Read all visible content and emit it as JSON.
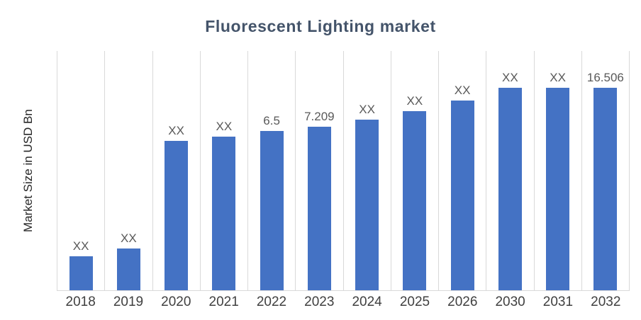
{
  "chart_data": {
    "type": "bar",
    "title": "Fluorescent Lighting market",
    "ylabel": "Market Size in USD Bn",
    "xlabel": "",
    "categories": [
      "2018",
      "2019",
      "2020",
      "2021",
      "2022",
      "2023",
      "2024",
      "2025",
      "2026",
      "2030",
      "2031",
      "2032"
    ],
    "labels": [
      "XX",
      "XX",
      "XX",
      "XX",
      "6.5",
      "7.209",
      "XX",
      "XX",
      "XX",
      "XX",
      "XX",
      "16.506"
    ],
    "known_values_usd_bn": {
      "2022": 6.5,
      "2023": 7.209,
      "2032": 16.506
    },
    "bar_heights_pct": [
      14.1,
      17.4,
      62.4,
      64.1,
      66.5,
      68.2,
      71.2,
      75.0,
      79.4,
      84.7,
      84.7,
      84.7
    ],
    "bar_color": "#4472C4",
    "label_color": "#595959",
    "title_color": "#44546A",
    "gridlines": "vertical-light-gray",
    "gridline_color": "#d9d9d9",
    "legend": "none",
    "ylim_note": "no y-axis tick labels shown"
  }
}
